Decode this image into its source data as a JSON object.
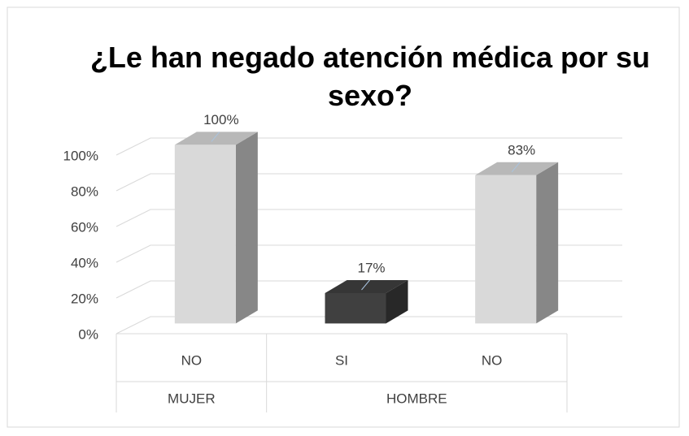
{
  "chart_data": {
    "type": "bar3d",
    "title": "¿Le han negado atención médica por su sexo?",
    "categories": [
      "NO",
      "SI",
      "NO"
    ],
    "groups": [
      {
        "name": "MUJER",
        "size": 1
      },
      {
        "name": "HOMBRE",
        "size": 2
      }
    ],
    "values": [
      100,
      17,
      83
    ],
    "value_labels": [
      "100%",
      "17%",
      "83%"
    ],
    "colors": [
      "#d9d9d9",
      "#404040",
      "#d9d9d9"
    ],
    "ylim": [
      0,
      100
    ],
    "yticks": [
      {
        "value": 0,
        "label": "0%"
      },
      {
        "value": 20,
        "label": "20%"
      },
      {
        "value": 40,
        "label": "40%"
      },
      {
        "value": 60,
        "label": "60%"
      },
      {
        "value": 80,
        "label": "80%"
      },
      {
        "value": 100,
        "label": "100%"
      }
    ],
    "grid": true
  }
}
